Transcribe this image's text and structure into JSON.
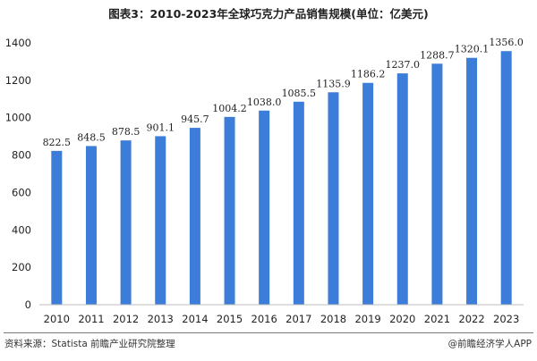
{
  "chart_data": {
    "type": "bar",
    "title": "图表3：2010-2023年全球巧克力产品销售规模(单位：亿美元)",
    "categories": [
      "2010",
      "2011",
      "2012",
      "2013",
      "2014",
      "2015",
      "2016",
      "2017",
      "2018",
      "2019",
      "2020",
      "2021",
      "2022",
      "2023"
    ],
    "values": [
      822.5,
      848.5,
      878.5,
      901.1,
      945.7,
      1004.2,
      1038.0,
      1085.5,
      1135.9,
      1186.2,
      1237.0,
      1288.7,
      1320.1,
      1356.0
    ],
    "value_labels": [
      "822.5",
      "848.5",
      "878.5",
      "901.1",
      "945.7",
      "1004.2",
      "1038.0",
      "1085.5",
      "1135.9",
      "1186.2",
      "1237.0",
      "1288.7",
      "1320.1",
      "1356.0"
    ],
    "ylim": [
      0,
      1400
    ],
    "yticks": [
      0,
      200,
      400,
      600,
      800,
      1000,
      1200,
      1400
    ],
    "bar_color": "#3b7dd8",
    "grid": false,
    "legend": "none"
  },
  "footer": {
    "source": "资料来源：Statista 前瞻产业研究院整理",
    "brand": "@前瞻经济学人APP"
  }
}
